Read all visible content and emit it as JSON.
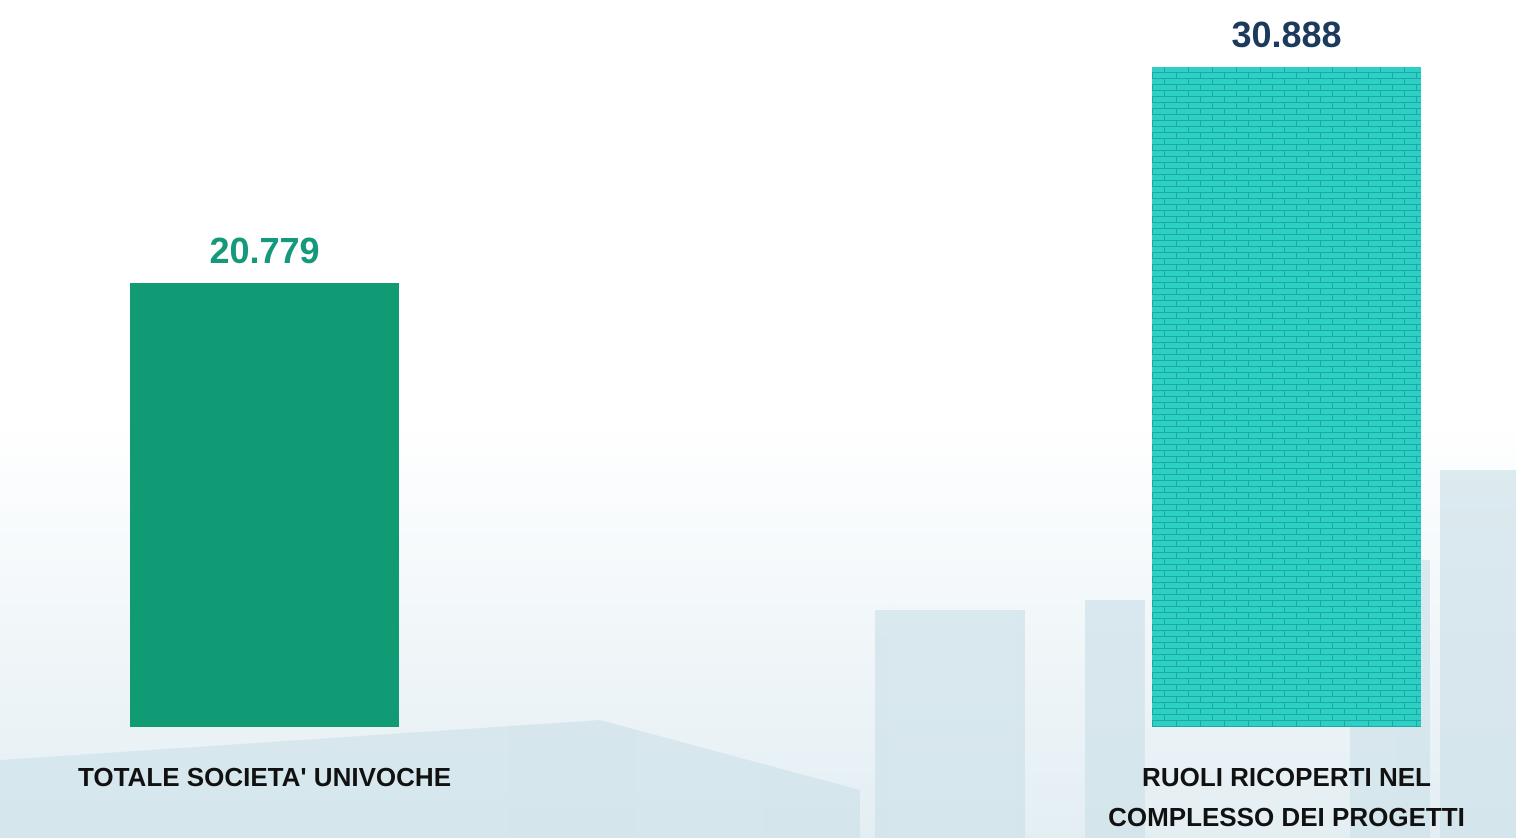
{
  "chart_data": {
    "type": "bar",
    "categories": [
      "TOTALE SOCIETA' UNIVOCHE",
      "RUOLI RICOPERTI NEL COMPLESSO DEI PROGETTI"
    ],
    "values": [
      20779,
      30888
    ],
    "value_labels": [
      "20.779",
      "30.888"
    ],
    "colors": [
      "#109b74",
      "#2fd0c4"
    ],
    "patterns": [
      "solid",
      "brick"
    ],
    "label_colors": [
      "#14997a",
      "#1b3a5c"
    ]
  }
}
